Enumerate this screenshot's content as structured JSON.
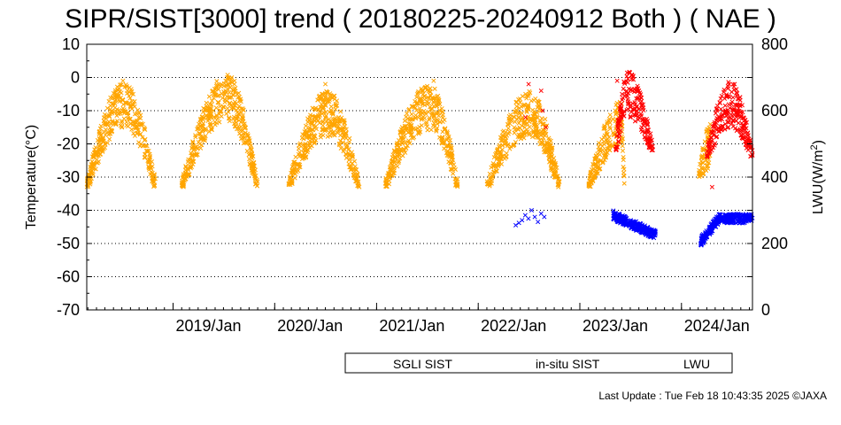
{
  "chart_data": {
    "type": "scatter",
    "title": "SIPR/SIST[3000] trend ( 20180225-20240912 Both ) ( NAE )",
    "ylabel": "Temperature(°C)",
    "y2label": "LWU(W/m²)",
    "ylim": [
      -70,
      10
    ],
    "y2lim": [
      0,
      800
    ],
    "yticks": [
      10,
      0,
      -10,
      -20,
      -30,
      -40,
      -50,
      -60,
      -70
    ],
    "y2ticks": [
      800,
      600,
      400,
      200,
      0
    ],
    "xlim": [
      "2018-02-25",
      "2024-09-12"
    ],
    "xticks": [
      {
        "date": "2019-01-01",
        "label": "2019/Jan"
      },
      {
        "date": "2020-01-01",
        "label": "2020/Jan"
      },
      {
        "date": "2021-01-01",
        "label": "2021/Jan"
      },
      {
        "date": "2022-01-01",
        "label": "2022/Jan"
      },
      {
        "date": "2023-01-01",
        "label": "2023/Jan"
      },
      {
        "date": "2024-01-01",
        "label": "2024/Jan"
      }
    ],
    "grid": true,
    "legend_position": "bottom",
    "series": [
      {
        "name": "SGLI SIST",
        "color": "#FFA500",
        "axis": "left",
        "seasons": [
          {
            "start": "2018-02-25",
            "end": "2018-10-31",
            "baseline": -33,
            "peak": -8,
            "peak_date": "2018-07-10"
          },
          {
            "start": "2019-02-01",
            "end": "2019-10-31",
            "baseline": -33,
            "peak": -6,
            "peak_date": "2019-07-15"
          },
          {
            "start": "2020-02-20",
            "end": "2020-10-31",
            "baseline": -33,
            "peak": -11,
            "peak_date": "2020-07-10"
          },
          {
            "start": "2021-02-01",
            "end": "2021-10-20",
            "baseline": -33,
            "peak": -9,
            "peak_date": "2021-07-10"
          },
          {
            "start": "2022-02-01",
            "end": "2022-10-20",
            "baseline": -33,
            "peak": -11,
            "peak_date": "2022-07-05"
          },
          {
            "start": "2023-02-01",
            "end": "2023-06-10",
            "baseline": -33,
            "peak": -14,
            "peak_date": "2023-05-30"
          },
          {
            "start": "2024-03-01",
            "end": "2024-04-20",
            "baseline": -30,
            "peak": -20,
            "peak_date": "2024-04-20"
          }
        ],
        "points": [
          {
            "x": "2018-07-05",
            "y": -1
          },
          {
            "x": "2019-07-20",
            "y": 0
          },
          {
            "x": "2019-08-10",
            "y": -1
          },
          {
            "x": "2020-07-01",
            "y": -2
          },
          {
            "x": "2021-07-25",
            "y": -1
          },
          {
            "x": "2022-06-20",
            "y": -5
          }
        ]
      },
      {
        "name": "in-situ SIST",
        "color": "#FF0000",
        "axis": "left",
        "seasons": [
          {
            "start": "2023-05-10",
            "end": "2023-09-20",
            "baseline": -22,
            "peak": -5,
            "peak_date": "2023-06-20"
          },
          {
            "start": "2024-04-01",
            "end": "2024-09-12",
            "baseline": -24,
            "peak": -8,
            "peak_date": "2024-06-25"
          }
        ],
        "points": [
          {
            "x": "2022-06-20",
            "y": -12
          },
          {
            "x": "2022-07-01",
            "y": -2
          },
          {
            "x": "2022-08-15",
            "y": -4
          },
          {
            "x": "2022-08-20",
            "y": -10
          },
          {
            "x": "2022-09-01",
            "y": -15
          },
          {
            "x": "2023-05-15",
            "y": -1
          },
          {
            "x": "2024-06-20",
            "y": -2
          },
          {
            "x": "2024-07-10",
            "y": -2
          },
          {
            "x": "2024-04-20",
            "y": -33
          }
        ]
      },
      {
        "name": "LWU",
        "color": "#0000FF",
        "axis": "right",
        "clusters": [
          {
            "start": "2022-05-10",
            "end": "2022-09-01",
            "values": [
              255,
              262,
              270,
              285,
              275,
              300,
              280,
              265,
              290,
              280
            ]
          },
          {
            "start": "2023-05-01",
            "end": "2023-09-30",
            "low": 210,
            "high": 300,
            "trend": "decreasing"
          },
          {
            "start": "2024-03-10",
            "end": "2024-09-12",
            "low": 190,
            "high": 300,
            "trend": "rising-then-flat"
          }
        ]
      }
    ]
  },
  "footer": {
    "last_update": "Last Update : Tue Feb 18 10:43:35 2025  ©JAXA"
  }
}
